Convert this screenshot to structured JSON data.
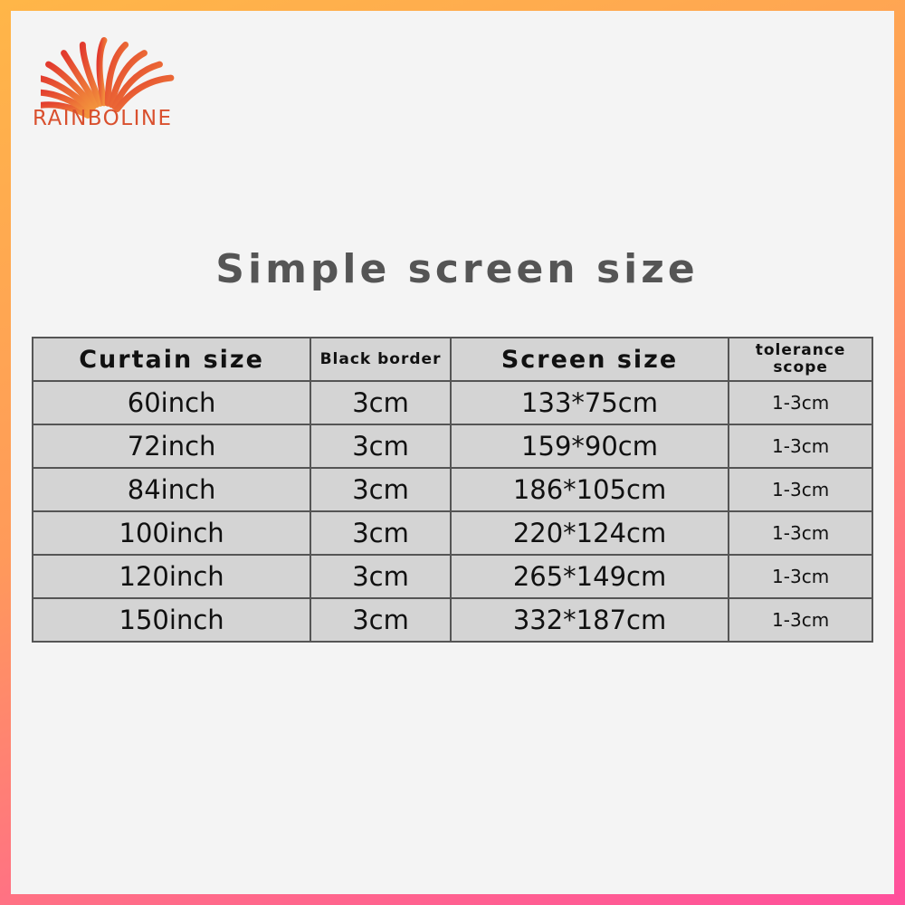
{
  "brand": {
    "name": "RAINBOLINE",
    "colors": {
      "logo_top": "#e23a2e",
      "logo_bottom": "#f2883a"
    }
  },
  "title": "Simple screen size",
  "table": {
    "headers": [
      "Curtain size",
      "Black border",
      "Screen size",
      "tolerance scope"
    ],
    "rows": [
      [
        "60inch",
        "3cm",
        "133*75cm",
        "1-3cm"
      ],
      [
        "72inch",
        "3cm",
        "159*90cm",
        "1-3cm"
      ],
      [
        "84inch",
        "3cm",
        "186*105cm",
        "1-3cm"
      ],
      [
        "100inch",
        "3cm",
        "220*124cm",
        "1-3cm"
      ],
      [
        "120inch",
        "3cm",
        "265*149cm",
        "1-3cm"
      ],
      [
        "150inch",
        "3cm",
        "332*187cm",
        "1-3cm"
      ]
    ]
  }
}
